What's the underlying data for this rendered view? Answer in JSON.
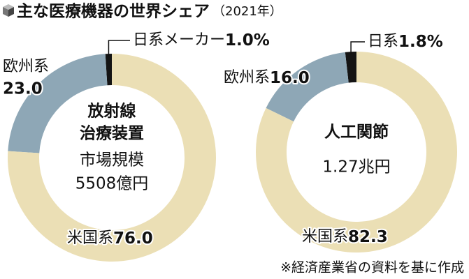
{
  "header": {
    "title": "主な医療機器の世界シェア",
    "subtitle": "（2021年）"
  },
  "chart_data": [
    {
      "type": "donut",
      "categories": [
        "日系メーカー",
        "欧州系",
        "米国系"
      ],
      "values": [
        1.0,
        23.0,
        76.0
      ],
      "value_labels": [
        "1.0%",
        "23.0",
        "76.0"
      ],
      "colors": [
        "#141414",
        "#8ea7b6",
        "#ebdfb5"
      ],
      "center_labels": [
        "放射線",
        "治療装置",
        "市場規模",
        "5508億円"
      ]
    },
    {
      "type": "donut",
      "categories": [
        "日系",
        "欧州系",
        "米国系"
      ],
      "values": [
        1.8,
        16.0,
        82.3
      ],
      "value_labels": [
        "1.8%",
        "16.0",
        "82.3"
      ],
      "colors": [
        "#141414",
        "#8ea7b6",
        "#ebdfb5"
      ],
      "center_labels": [
        "人工関節",
        "1.27兆円"
      ]
    }
  ],
  "note": "※経済産業省の資料を基に作成"
}
